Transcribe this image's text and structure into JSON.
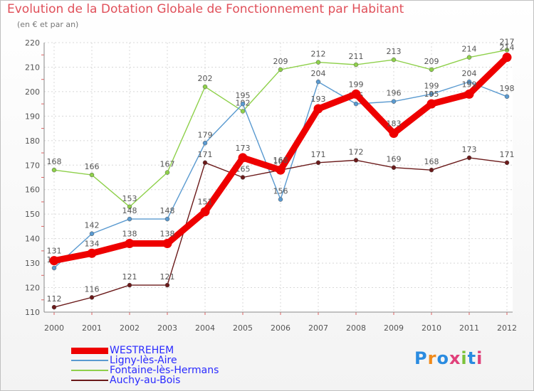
{
  "title": "Evolution de la Dotation Globale de Fonctionnement par Habitant",
  "subtitle": "(en € et par an)",
  "logo_text": "Proxiti",
  "chart_data": {
    "type": "line",
    "title": "Evolution de la Dotation Globale de Fonctionnement par Habitant",
    "ylabel": "(en € et par an)",
    "xlabel": "",
    "ylim": [
      110,
      220
    ],
    "yticks": [
      110,
      120,
      130,
      140,
      150,
      160,
      170,
      180,
      190,
      200,
      210,
      220
    ],
    "categories": [
      "2000",
      "2001",
      "2002",
      "2003",
      "2004",
      "2005",
      "2006",
      "2007",
      "2008",
      "2009",
      "2010",
      "2011",
      "2012"
    ],
    "grid": true,
    "series": [
      {
        "name": "Fontaine-lès-Hermans",
        "color": "#8ed04a",
        "values": [
          168,
          166,
          153,
          167,
          202,
          192,
          209,
          212,
          211,
          213,
          209,
          214,
          217
        ]
      },
      {
        "name": "Ligny-lès-Aire",
        "color": "#5a9ad0",
        "values": [
          128,
          142,
          148,
          148,
          179,
          195,
          156,
          204,
          195,
          196,
          199,
          204,
          198
        ]
      },
      {
        "name": "Auchy-au-Bois",
        "color": "#6b1a1a",
        "values": [
          112,
          116,
          121,
          121,
          171,
          165,
          168,
          171,
          172,
          169,
          168,
          173,
          171
        ]
      },
      {
        "name": "WESTREHEM",
        "color": "#ee0000",
        "values": [
          131,
          134,
          138,
          138,
          151,
          173,
          168,
          193,
          199,
          183,
          195,
          199,
          214
        ]
      }
    ],
    "legend_order": [
      "WESTREHEM",
      "Ligny-lès-Aire",
      "Fontaine-lès-Hermans",
      "Auchy-au-Bois"
    ]
  }
}
